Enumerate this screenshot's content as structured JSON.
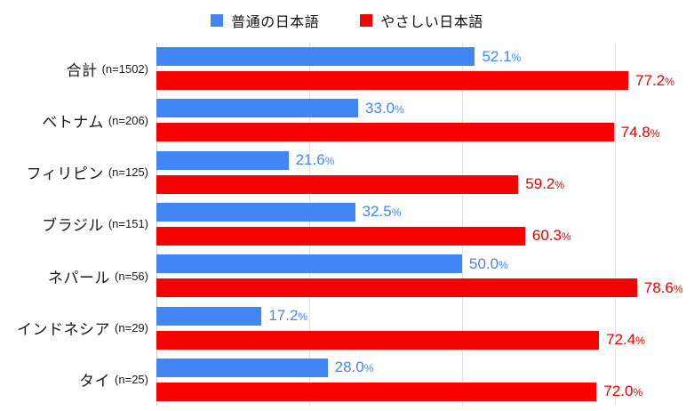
{
  "chart_data": {
    "type": "bar",
    "orientation": "horizontal",
    "title": "",
    "xlabel": "",
    "ylabel": "",
    "categories": [
      "合計",
      "ベトナム",
      "フィリピン",
      "ブラジル",
      "ネパール",
      "インドネシア",
      "タイ"
    ],
    "category_n": [
      "(n=1502)",
      "(n=206)",
      "(n=125)",
      "(n=151)",
      "(n=56)",
      "(n=29)",
      "(n=25)"
    ],
    "series": [
      {
        "name": "普通の日本語",
        "color": "#4285f4",
        "label_color": "#4285f4",
        "values": [
          52.1,
          33.0,
          21.6,
          32.5,
          50.0,
          17.2,
          28.0
        ]
      },
      {
        "name": "やさしい日本語",
        "color": "#f60000",
        "label_color": "#e60000",
        "values": [
          77.2,
          74.8,
          59.2,
          60.3,
          78.6,
          72.4,
          72.0
        ]
      }
    ],
    "value_suffix": "%",
    "xlim": [
      0,
      100
    ],
    "gridlines": [
      0,
      25,
      50,
      75
    ],
    "grid": true,
    "legend_position": "top"
  }
}
